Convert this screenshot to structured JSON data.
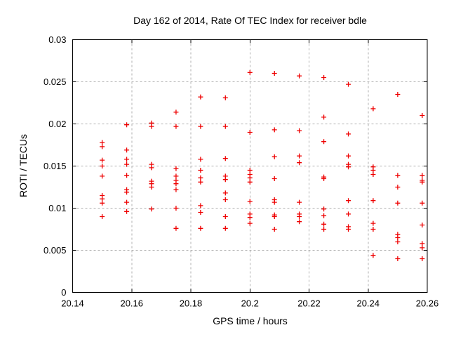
{
  "chart_data": {
    "type": "scatter",
    "title": "Day 162 of 2014, Rate Of TEC Index for receiver bdle",
    "xlabel": "GPS time / hours",
    "ylabel": "ROTI / TECUs",
    "xlim": [
      20.14,
      20.26
    ],
    "ylim": [
      0,
      0.03
    ],
    "xtick_values": [
      20.14,
      20.16,
      20.18,
      20.2,
      20.22,
      20.24,
      20.26
    ],
    "xtick_labels": [
      "20.14",
      "20.16",
      "20.18",
      "20.2",
      "20.22",
      "20.24",
      "20.26"
    ],
    "ytick_values": [
      0,
      0.005,
      0.01,
      0.015,
      0.02,
      0.025,
      0.03
    ],
    "ytick_labels": [
      "0",
      "0.005",
      "0.01",
      "0.015",
      "0.02",
      "0.025",
      "0.03"
    ],
    "grid": true,
    "legend": "none",
    "marker": "plus",
    "marker_color": "#ee0000",
    "grid_color": "#b0b0b0",
    "border_color": "#000000",
    "series": [
      {
        "name": "ROTI",
        "points": [
          [
            20.15,
            0.0178
          ],
          [
            20.15,
            0.0173
          ],
          [
            20.15,
            0.0157
          ],
          [
            20.15,
            0.015
          ],
          [
            20.15,
            0.0138
          ],
          [
            20.15,
            0.0115
          ],
          [
            20.15,
            0.0111
          ],
          [
            20.15,
            0.0106
          ],
          [
            20.15,
            0.009
          ],
          [
            20.1583,
            0.0199
          ],
          [
            20.1583,
            0.0169
          ],
          [
            20.1583,
            0.0158
          ],
          [
            20.1583,
            0.0152
          ],
          [
            20.1583,
            0.0139
          ],
          [
            20.1583,
            0.0122
          ],
          [
            20.1583,
            0.0119
          ],
          [
            20.1583,
            0.0107
          ],
          [
            20.1583,
            0.0096
          ],
          [
            20.1667,
            0.0201
          ],
          [
            20.1667,
            0.0197
          ],
          [
            20.1667,
            0.0152
          ],
          [
            20.1667,
            0.0148
          ],
          [
            20.1667,
            0.0132
          ],
          [
            20.1667,
            0.0129
          ],
          [
            20.1667,
            0.0125
          ],
          [
            20.1667,
            0.0099
          ],
          [
            20.175,
            0.0214
          ],
          [
            20.175,
            0.0197
          ],
          [
            20.175,
            0.0147
          ],
          [
            20.175,
            0.0138
          ],
          [
            20.175,
            0.0133
          ],
          [
            20.175,
            0.0129
          ],
          [
            20.175,
            0.0122
          ],
          [
            20.175,
            0.01
          ],
          [
            20.175,
            0.0076
          ],
          [
            20.1833,
            0.0232
          ],
          [
            20.1833,
            0.0197
          ],
          [
            20.1833,
            0.0158
          ],
          [
            20.1833,
            0.0145
          ],
          [
            20.1833,
            0.0136
          ],
          [
            20.1833,
            0.0131
          ],
          [
            20.1833,
            0.0103
          ],
          [
            20.1833,
            0.0095
          ],
          [
            20.1833,
            0.0076
          ],
          [
            20.1917,
            0.0231
          ],
          [
            20.1917,
            0.0197
          ],
          [
            20.1917,
            0.0159
          ],
          [
            20.1917,
            0.0138
          ],
          [
            20.1917,
            0.0134
          ],
          [
            20.1917,
            0.0118
          ],
          [
            20.1917,
            0.011
          ],
          [
            20.1917,
            0.009
          ],
          [
            20.1917,
            0.0076
          ],
          [
            20.2,
            0.0261
          ],
          [
            20.2,
            0.019
          ],
          [
            20.2,
            0.0145
          ],
          [
            20.2,
            0.014
          ],
          [
            20.2,
            0.0136
          ],
          [
            20.2,
            0.0131
          ],
          [
            20.2,
            0.0108
          ],
          [
            20.2,
            0.0093
          ],
          [
            20.2,
            0.0089
          ],
          [
            20.2,
            0.0082
          ],
          [
            20.2083,
            0.026
          ],
          [
            20.2083,
            0.0193
          ],
          [
            20.2083,
            0.0161
          ],
          [
            20.2083,
            0.0135
          ],
          [
            20.2083,
            0.011
          ],
          [
            20.2083,
            0.0107
          ],
          [
            20.2083,
            0.0092
          ],
          [
            20.2083,
            0.009
          ],
          [
            20.2083,
            0.0075
          ],
          [
            20.2167,
            0.0257
          ],
          [
            20.2167,
            0.0192
          ],
          [
            20.2167,
            0.0162
          ],
          [
            20.2167,
            0.0154
          ],
          [
            20.2167,
            0.0107
          ],
          [
            20.2167,
            0.0093
          ],
          [
            20.2167,
            0.009
          ],
          [
            20.2167,
            0.0084
          ],
          [
            20.225,
            0.0255
          ],
          [
            20.225,
            0.0208
          ],
          [
            20.225,
            0.0179
          ],
          [
            20.225,
            0.0137
          ],
          [
            20.225,
            0.0135
          ],
          [
            20.225,
            0.0099
          ],
          [
            20.225,
            0.0091
          ],
          [
            20.225,
            0.0081
          ],
          [
            20.225,
            0.0075
          ],
          [
            20.2333,
            0.0247
          ],
          [
            20.2333,
            0.0188
          ],
          [
            20.2333,
            0.0162
          ],
          [
            20.2333,
            0.0152
          ],
          [
            20.2333,
            0.0149
          ],
          [
            20.2333,
            0.0109
          ],
          [
            20.2333,
            0.0093
          ],
          [
            20.2333,
            0.0078
          ],
          [
            20.2333,
            0.0075
          ],
          [
            20.2417,
            0.0218
          ],
          [
            20.2417,
            0.0149
          ],
          [
            20.2417,
            0.0145
          ],
          [
            20.2417,
            0.014
          ],
          [
            20.2417,
            0.0109
          ],
          [
            20.2417,
            0.0082
          ],
          [
            20.2417,
            0.0075
          ],
          [
            20.2417,
            0.0044
          ],
          [
            20.25,
            0.0235
          ],
          [
            20.25,
            0.0139
          ],
          [
            20.25,
            0.0125
          ],
          [
            20.25,
            0.0106
          ],
          [
            20.25,
            0.0069
          ],
          [
            20.25,
            0.0065
          ],
          [
            20.25,
            0.006
          ],
          [
            20.25,
            0.004
          ],
          [
            20.2583,
            0.021
          ],
          [
            20.2583,
            0.0139
          ],
          [
            20.2583,
            0.0133
          ],
          [
            20.2583,
            0.0131
          ],
          [
            20.2583,
            0.0106
          ],
          [
            20.2583,
            0.008
          ],
          [
            20.2583,
            0.0058
          ],
          [
            20.2583,
            0.0053
          ],
          [
            20.2583,
            0.004
          ]
        ]
      }
    ]
  }
}
